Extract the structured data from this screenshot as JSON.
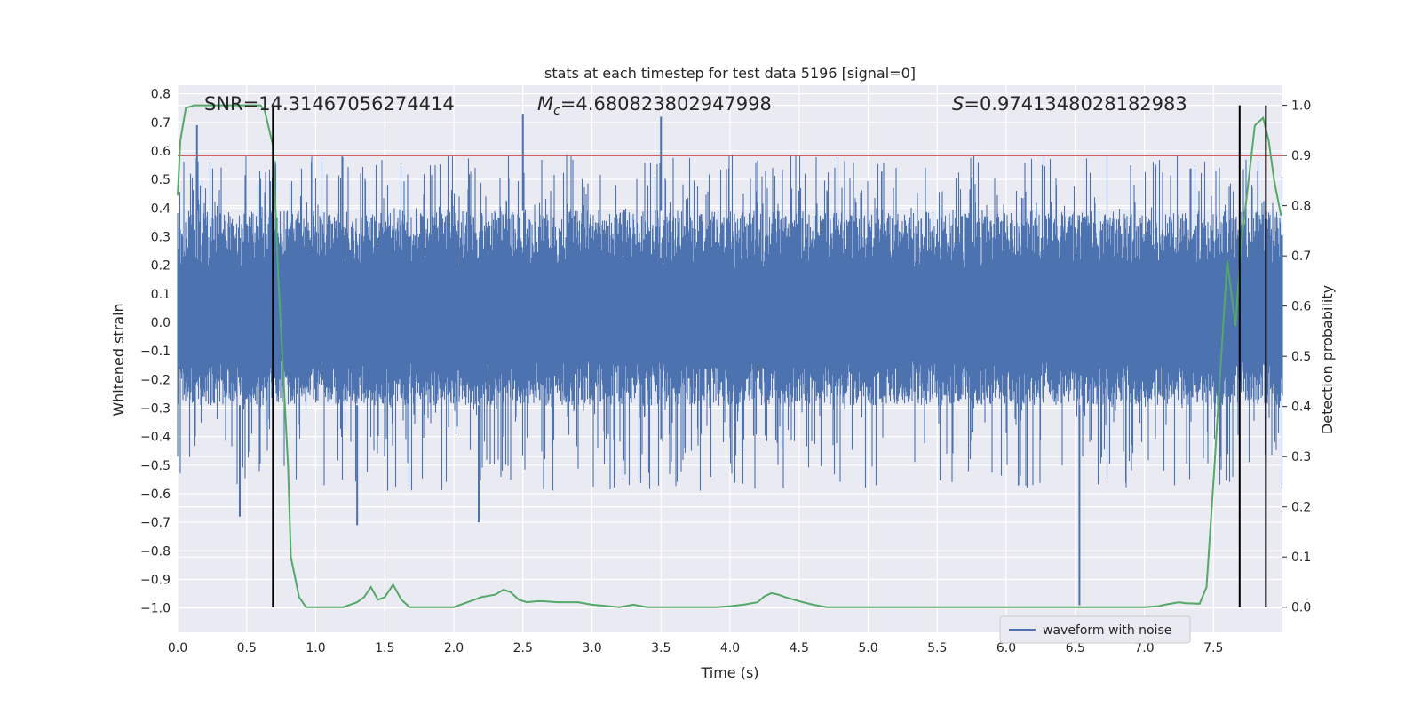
{
  "chart_data": {
    "type": "line",
    "title": "stats at each timestep for test data 5196 [signal=0]",
    "xlabel": "Time (s)",
    "ylabel_left": "Whitened strain",
    "ylabel_right": "Detection probability",
    "xlim": [
      0.0,
      8.0
    ],
    "ylim_left": [
      -1.085,
      0.83
    ],
    "ylim_right": [
      -0.05,
      1.04
    ],
    "x_ticks": [
      "0.0",
      "0.5",
      "1.0",
      "1.5",
      "2.0",
      "2.5",
      "3.0",
      "3.5",
      "4.0",
      "4.5",
      "5.0",
      "5.5",
      "6.0",
      "6.5",
      "7.0",
      "7.5"
    ],
    "y_ticks_left": [
      "0.8",
      "0.7",
      "0.6",
      "0.5",
      "0.4",
      "0.3",
      "0.2",
      "0.1",
      "0.0",
      "−0.1",
      "−0.2",
      "−0.3",
      "−0.4",
      "−0.5",
      "−0.6",
      "−0.7",
      "−0.8",
      "−0.9",
      "−1.0"
    ],
    "y_ticks_right": [
      "0.0",
      "0.1",
      "0.2",
      "0.3",
      "0.4",
      "0.5",
      "0.6",
      "0.7",
      "0.8",
      "0.9",
      "1.0"
    ],
    "grid": true,
    "legend_position": "lower-right",
    "annotations": {
      "snr": "SNR=14.31467056274414",
      "mc_prefix": "M",
      "mc_sub": "c",
      "mc_value": "=4.680823802947998",
      "s_prefix": "S",
      "s_value": "=0.9741348028182983"
    },
    "series": [
      {
        "name": "waveform with noise",
        "axis": "left",
        "color": "#4c72b0",
        "envelope_typical": [
          -0.29,
          0.39
        ],
        "notable_peaks": [
          {
            "x": 0.14,
            "y": 0.69
          },
          {
            "x": 2.5,
            "y": 0.73
          },
          {
            "x": 3.5,
            "y": 0.72
          },
          {
            "x": 1.3,
            "y": -0.71
          },
          {
            "x": 2.18,
            "y": -0.7
          },
          {
            "x": 6.53,
            "y": -0.99
          },
          {
            "x": 0.45,
            "y": -0.68
          }
        ]
      },
      {
        "name": "",
        "axis": "right",
        "color": "#55a868",
        "x": [
          0.0,
          0.02,
          0.06,
          0.12,
          0.2,
          0.3,
          0.4,
          0.5,
          0.6,
          0.63,
          0.69,
          0.73,
          0.8,
          0.82,
          0.88,
          0.93,
          1.0,
          1.1,
          1.2,
          1.3,
          1.35,
          1.4,
          1.45,
          1.5,
          1.56,
          1.62,
          1.68,
          1.75,
          1.85,
          2.0,
          2.1,
          2.15,
          2.2,
          2.3,
          2.36,
          2.41,
          2.47,
          2.53,
          2.6,
          2.65,
          2.75,
          2.9,
          3.0,
          3.2,
          3.3,
          3.4,
          3.6,
          3.8,
          3.9,
          4.0,
          4.1,
          4.2,
          4.25,
          4.3,
          4.35,
          4.4,
          4.5,
          4.6,
          4.7,
          4.8,
          5.0,
          5.1,
          5.2,
          5.3,
          5.5,
          5.6,
          5.8,
          6.0,
          6.2,
          6.4,
          6.6,
          6.8,
          7.0,
          7.1,
          7.15,
          7.25,
          7.3,
          7.4,
          7.45,
          7.5,
          7.6,
          7.66,
          7.7,
          7.8,
          7.86,
          7.9,
          7.94,
          7.99
        ],
        "y": [
          0.82,
          0.93,
          0.995,
          1.0,
          1.0,
          1.0,
          1.0,
          1.0,
          1.0,
          0.99,
          0.92,
          0.65,
          0.28,
          0.1,
          0.02,
          0.0,
          0.0,
          0.0,
          0.0,
          0.01,
          0.02,
          0.04,
          0.015,
          0.02,
          0.045,
          0.015,
          0.0,
          0.0,
          0.0,
          0.0,
          0.01,
          0.015,
          0.02,
          0.025,
          0.035,
          0.03,
          0.015,
          0.01,
          0.012,
          0.012,
          0.01,
          0.01,
          0.005,
          0.0,
          0.005,
          0.0,
          0.0,
          0.0,
          0.0,
          0.002,
          0.005,
          0.01,
          0.022,
          0.028,
          0.025,
          0.02,
          0.012,
          0.005,
          0.0,
          0.0,
          0.0,
          0.0,
          0.0,
          0.0,
          0.0,
          0.0,
          0.0,
          0.0,
          0.0,
          0.0,
          0.0,
          0.0,
          0.0,
          0.002,
          0.005,
          0.01,
          0.008,
          0.007,
          0.04,
          0.25,
          0.69,
          0.56,
          0.72,
          0.96,
          0.975,
          0.93,
          0.85,
          0.78
        ]
      },
      {
        "name": "",
        "axis": "right",
        "color": "#c44e52",
        "type": "hline",
        "y": 0.9
      }
    ],
    "vlines": {
      "color": "#000000",
      "x": [
        0.69,
        7.69,
        7.88
      ],
      "y_range": [
        0.0,
        1.0
      ]
    }
  }
}
